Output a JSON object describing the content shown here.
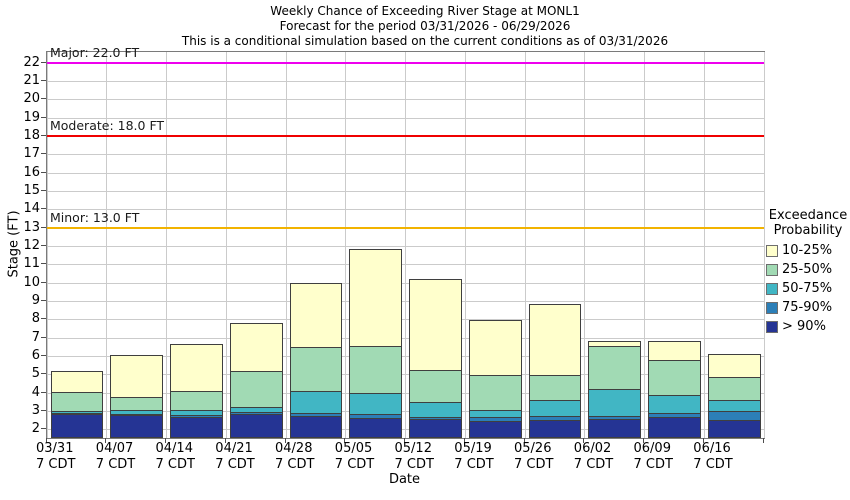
{
  "title_lines": [
    "Weekly Chance of Exceeding River Stage at MONL1",
    "Forecast for the period 03/31/2026 - 06/29/2026",
    "This is a conditional simulation based on the current conditions as of 03/31/2026"
  ],
  "y_axis": {
    "label": "Stage (FT)",
    "tick_min": 2,
    "tick_max": 22,
    "tick_step": 1
  },
  "x_axis": {
    "label": "Date",
    "tick_sublabel": "7 CDT"
  },
  "reference_lines": [
    {
      "name": "Major",
      "label": "Major: 22.0 FT",
      "value": 22.0,
      "color": "#ee00ee"
    },
    {
      "name": "Moderate",
      "label": "Moderate: 18.0 FT",
      "value": 18.0,
      "color": "#f00000"
    },
    {
      "name": "Minor",
      "label": "Minor: 13.0 FT",
      "value": 13.0,
      "color": "#f2b300"
    }
  ],
  "legend": {
    "title_lines": [
      "Exceedance",
      "Probability"
    ],
    "items": [
      {
        "label": "10-25%",
        "color": "#ffffcc"
      },
      {
        "label": "25-50%",
        "color": "#a1dab4"
      },
      {
        "label": "50-75%",
        "color": "#41b6c4"
      },
      {
        "label": "75-90%",
        "color": "#2c7fb8"
      },
      {
        "label": "> 90%",
        "color": "#253494"
      }
    ]
  },
  "chart_data": {
    "type": "bar",
    "stacked": true,
    "title": "Weekly Chance of Exceeding River Stage at MONL1",
    "xlabel": "Date",
    "ylabel": "Stage (FT)",
    "ylim": [
      1.55,
      22.6
    ],
    "baseline_stage_ft": 1.55,
    "grid": true,
    "legend_position": "right",
    "categories": [
      "03/31",
      "04/07",
      "04/14",
      "04/21",
      "04/28",
      "05/05",
      "05/12",
      "05/19",
      "05/26",
      "06/02",
      "06/09",
      "06/16"
    ],
    "series": [
      {
        "name": "> 90%",
        "color": "#253494",
        "cumulative_top_stage_ft": [
          2.85,
          2.8,
          2.7,
          2.85,
          2.75,
          2.65,
          2.6,
          2.5,
          2.55,
          2.6,
          2.7,
          2.55
        ]
      },
      {
        "name": "75-90%",
        "color": "#2c7fb8",
        "cumulative_top_stage_ft": [
          2.9,
          2.85,
          2.8,
          2.95,
          2.9,
          2.85,
          2.7,
          2.7,
          2.75,
          2.75,
          2.9,
          3.0
        ]
      },
      {
        "name": "50-75%",
        "color": "#41b6c4",
        "cumulative_top_stage_ft": [
          3.0,
          3.1,
          3.05,
          3.25,
          4.1,
          4.0,
          3.5,
          3.1,
          3.6,
          4.2,
          3.9,
          3.6
        ]
      },
      {
        "name": "25-50%",
        "color": "#a1dab4",
        "cumulative_top_stage_ft": [
          4.05,
          3.8,
          4.1,
          5.2,
          6.5,
          6.55,
          5.25,
          5.0,
          5.0,
          6.55,
          5.8,
          4.85
        ]
      },
      {
        "name": "10-25%",
        "color": "#ffffcc",
        "cumulative_top_stage_ft": [
          5.2,
          6.1,
          6.7,
          7.85,
          10.0,
          11.85,
          10.25,
          8.0,
          8.85,
          6.85,
          6.85,
          6.15
        ]
      }
    ]
  }
}
